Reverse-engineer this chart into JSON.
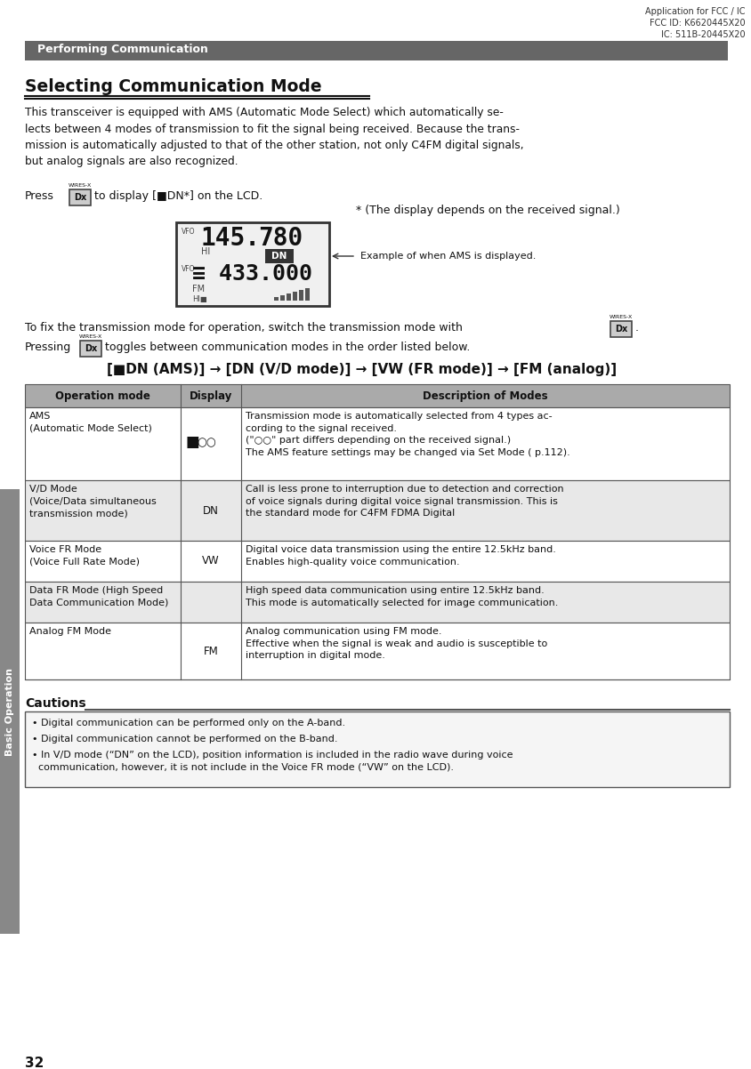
{
  "page_number": "32",
  "header_right_lines": [
    "Application for FCC / IC",
    "FCC ID: K6620445X20",
    "IC: 511B-20445X20"
  ],
  "section_banner_text": "Performing Communication",
  "section_banner_bg": "#666666",
  "section_banner_fg": "#ffffff",
  "title": "Selecting Communication Mode",
  "body_para1": "This transceiver is equipped with AMS (Automatic Mode Select) which automatically se-\nlects between 4 modes of transmission to fit the signal being received. Because the trans-\nmission is automatically adjusted to that of the other station, not only C4FM digital signals,\nbut analog signals are also recognized.",
  "toggle_line": "[■DN (AMS)] → [DN (V/D mode)] → [VW (FR mode)] → [FM (analog)]",
  "table_header": [
    "Operation mode",
    "Display",
    "Description of Modes"
  ],
  "table_rows": [
    {
      "mode": "AMS\n(Automatic Mode Select)",
      "display": "■○○",
      "desc": "Transmission mode is automatically selected from 4 types ac-\ncording to the signal received.\n(\"○○\" part differs depending on the received signal.)\nThe AMS feature settings may be changed via Set Mode ( p.112).",
      "bg": "#ffffff"
    },
    {
      "mode": "V/D Mode\n(Voice/Data simultaneous\ntransmission mode)",
      "display": "DN",
      "desc": "Call is less prone to interruption due to detection and correction\nof voice signals during digital voice signal transmission. This is\nthe standard mode for C4FM FDMA Digital",
      "bg": "#e8e8e8"
    },
    {
      "mode": "Voice FR Mode\n(Voice Full Rate Mode)",
      "display": "VW",
      "desc": "Digital voice data transmission using the entire 12.5kHz band.\nEnables high-quality voice communication.",
      "bg": "#ffffff"
    },
    {
      "mode": "Data FR Mode (High Speed\nData Communication Mode)",
      "display": "",
      "desc": "High speed data communication using entire 12.5kHz band.\nThis mode is automatically selected for image communication.",
      "bg": "#e8e8e8"
    },
    {
      "mode": "Analog FM Mode",
      "display": "FM",
      "desc": "Analog communication using FM mode.\nEffective when the signal is weak and audio is susceptible to\ninterruption in digital mode.",
      "bg": "#ffffff"
    }
  ],
  "cautions_title": "Cautions",
  "cautions_items": [
    "Digital communication can be performed only on the A-band.",
    "Digital communication cannot be performed on the B-band.",
    "In V/D mode (“DN” on the LCD), position information is included in the radio wave during voice\n  communication, however, it is not include in the Voice FR mode (“VW” on the LCD)."
  ],
  "sidebar_text": "Basic Operation",
  "sidebar_bg": "#888888",
  "sidebar_fg": "#ffffff",
  "bg_color": "#ffffff",
  "table_header_bg": "#aaaaaa",
  "table_border": "#555555"
}
